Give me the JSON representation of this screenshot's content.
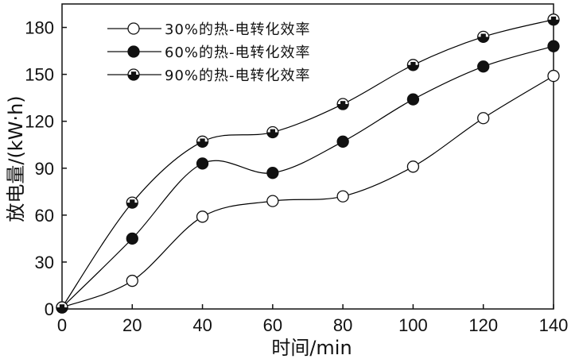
{
  "chart_data": {
    "type": "line",
    "title": "",
    "xlabel": "时间/min",
    "ylabel": "放电量/(kW·h)",
    "x": [
      0,
      20,
      40,
      60,
      80,
      100,
      120,
      140
    ],
    "xlim": [
      0,
      140
    ],
    "ylim": [
      0,
      195
    ],
    "xticks": [
      0,
      20,
      40,
      60,
      80,
      100,
      120,
      140
    ],
    "yticks": [
      0,
      30,
      60,
      90,
      120,
      150,
      180
    ],
    "grid": false,
    "legend_position": "top-left",
    "series": [
      {
        "name": "30%的热-电转化效率",
        "marker": "open-circle",
        "color": "#000000",
        "values": [
          1,
          18,
          59,
          69,
          72,
          91,
          122,
          149
        ]
      },
      {
        "name": "60%的热-电转化效率",
        "marker": "filled-circle",
        "color": "#000000",
        "values": [
          1,
          45,
          93,
          87,
          107,
          134,
          155,
          168
        ]
      },
      {
        "name": "90%的热-电转化效率",
        "marker": "half-filled-circle",
        "color": "#000000",
        "values": [
          1,
          68,
          107,
          113,
          131,
          156,
          174,
          185
        ]
      }
    ]
  }
}
